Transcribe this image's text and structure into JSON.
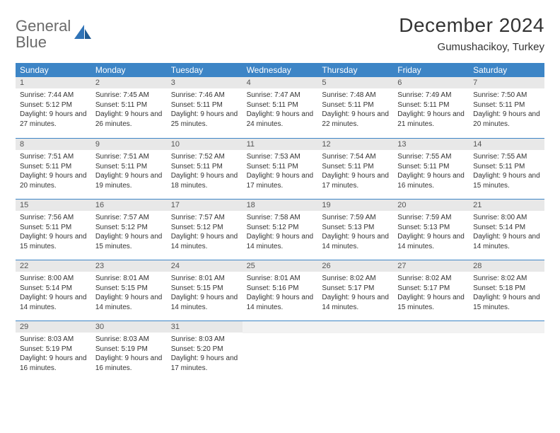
{
  "logo": {
    "text1": "General",
    "text2": "Blue"
  },
  "title": "December 2024",
  "location": "Gumushacikoy, Turkey",
  "weekday_header_bg": "#3d85c6",
  "weekdays": [
    "Sunday",
    "Monday",
    "Tuesday",
    "Wednesday",
    "Thursday",
    "Friday",
    "Saturday"
  ],
  "daynum_bg": "#e8e8e8",
  "row_border_color": "#3d85c6",
  "cell_font_size": 10,
  "days": [
    {
      "n": 1,
      "sunrise": "7:44 AM",
      "sunset": "5:12 PM",
      "daylight": "9 hours and 27 minutes."
    },
    {
      "n": 2,
      "sunrise": "7:45 AM",
      "sunset": "5:11 PM",
      "daylight": "9 hours and 26 minutes."
    },
    {
      "n": 3,
      "sunrise": "7:46 AM",
      "sunset": "5:11 PM",
      "daylight": "9 hours and 25 minutes."
    },
    {
      "n": 4,
      "sunrise": "7:47 AM",
      "sunset": "5:11 PM",
      "daylight": "9 hours and 24 minutes."
    },
    {
      "n": 5,
      "sunrise": "7:48 AM",
      "sunset": "5:11 PM",
      "daylight": "9 hours and 22 minutes."
    },
    {
      "n": 6,
      "sunrise": "7:49 AM",
      "sunset": "5:11 PM",
      "daylight": "9 hours and 21 minutes."
    },
    {
      "n": 7,
      "sunrise": "7:50 AM",
      "sunset": "5:11 PM",
      "daylight": "9 hours and 20 minutes."
    },
    {
      "n": 8,
      "sunrise": "7:51 AM",
      "sunset": "5:11 PM",
      "daylight": "9 hours and 20 minutes."
    },
    {
      "n": 9,
      "sunrise": "7:51 AM",
      "sunset": "5:11 PM",
      "daylight": "9 hours and 19 minutes."
    },
    {
      "n": 10,
      "sunrise": "7:52 AM",
      "sunset": "5:11 PM",
      "daylight": "9 hours and 18 minutes."
    },
    {
      "n": 11,
      "sunrise": "7:53 AM",
      "sunset": "5:11 PM",
      "daylight": "9 hours and 17 minutes."
    },
    {
      "n": 12,
      "sunrise": "7:54 AM",
      "sunset": "5:11 PM",
      "daylight": "9 hours and 17 minutes."
    },
    {
      "n": 13,
      "sunrise": "7:55 AM",
      "sunset": "5:11 PM",
      "daylight": "9 hours and 16 minutes."
    },
    {
      "n": 14,
      "sunrise": "7:55 AM",
      "sunset": "5:11 PM",
      "daylight": "9 hours and 15 minutes."
    },
    {
      "n": 15,
      "sunrise": "7:56 AM",
      "sunset": "5:11 PM",
      "daylight": "9 hours and 15 minutes."
    },
    {
      "n": 16,
      "sunrise": "7:57 AM",
      "sunset": "5:12 PM",
      "daylight": "9 hours and 15 minutes."
    },
    {
      "n": 17,
      "sunrise": "7:57 AM",
      "sunset": "5:12 PM",
      "daylight": "9 hours and 14 minutes."
    },
    {
      "n": 18,
      "sunrise": "7:58 AM",
      "sunset": "5:12 PM",
      "daylight": "9 hours and 14 minutes."
    },
    {
      "n": 19,
      "sunrise": "7:59 AM",
      "sunset": "5:13 PM",
      "daylight": "9 hours and 14 minutes."
    },
    {
      "n": 20,
      "sunrise": "7:59 AM",
      "sunset": "5:13 PM",
      "daylight": "9 hours and 14 minutes."
    },
    {
      "n": 21,
      "sunrise": "8:00 AM",
      "sunset": "5:14 PM",
      "daylight": "9 hours and 14 minutes."
    },
    {
      "n": 22,
      "sunrise": "8:00 AM",
      "sunset": "5:14 PM",
      "daylight": "9 hours and 14 minutes."
    },
    {
      "n": 23,
      "sunrise": "8:01 AM",
      "sunset": "5:15 PM",
      "daylight": "9 hours and 14 minutes."
    },
    {
      "n": 24,
      "sunrise": "8:01 AM",
      "sunset": "5:15 PM",
      "daylight": "9 hours and 14 minutes."
    },
    {
      "n": 25,
      "sunrise": "8:01 AM",
      "sunset": "5:16 PM",
      "daylight": "9 hours and 14 minutes."
    },
    {
      "n": 26,
      "sunrise": "8:02 AM",
      "sunset": "5:17 PM",
      "daylight": "9 hours and 14 minutes."
    },
    {
      "n": 27,
      "sunrise": "8:02 AM",
      "sunset": "5:17 PM",
      "daylight": "9 hours and 15 minutes."
    },
    {
      "n": 28,
      "sunrise": "8:02 AM",
      "sunset": "5:18 PM",
      "daylight": "9 hours and 15 minutes."
    },
    {
      "n": 29,
      "sunrise": "8:03 AM",
      "sunset": "5:19 PM",
      "daylight": "9 hours and 16 minutes."
    },
    {
      "n": 30,
      "sunrise": "8:03 AM",
      "sunset": "5:19 PM",
      "daylight": "9 hours and 16 minutes."
    },
    {
      "n": 31,
      "sunrise": "8:03 AM",
      "sunset": "5:20 PM",
      "daylight": "9 hours and 17 minutes."
    }
  ],
  "labels": {
    "sunrise": "Sunrise:",
    "sunset": "Sunset:",
    "daylight": "Daylight:"
  }
}
